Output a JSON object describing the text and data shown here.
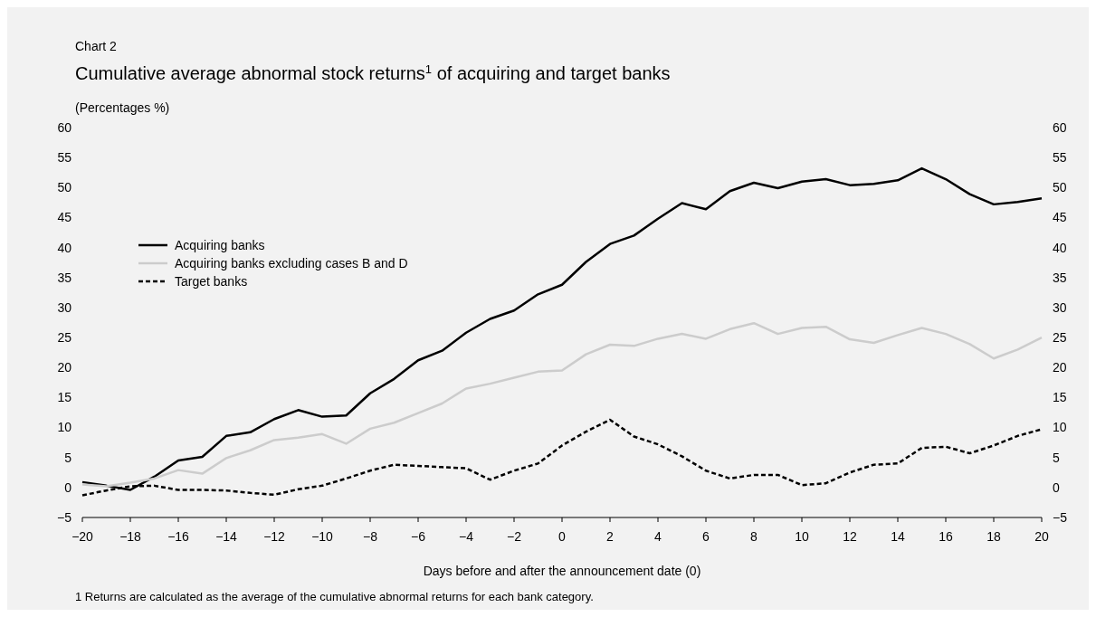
{
  "chart_data": {
    "type": "line",
    "title": "Cumulative average abnormal stock returns$^{1}$ of acquiring and target banks",
    "ylabel": "(Percentages %)",
    "xlabel": "Days before and after the announcement date (0)",
    "annotations": [
      "Chart  2",
      "1 Returns are calculated as the average of the cumulative abnormal returns for each bank category."
    ],
    "x": [
      -20,
      -19,
      -18,
      -17,
      -16,
      -15,
      -14,
      -13,
      -12,
      -11,
      -10,
      -9,
      -8,
      -7,
      -6,
      -5,
      -4,
      -3,
      -2,
      -1,
      0,
      1,
      2,
      3,
      4,
      5,
      6,
      7,
      8,
      9,
      10,
      11,
      12,
      13,
      14,
      15,
      16,
      17,
      18,
      19,
      20
    ],
    "xlim": [
      -20,
      20
    ],
    "xticks": [
      {
        "value": -20,
        "label": "−20"
      },
      {
        "value": -18,
        "label": "−18"
      },
      {
        "value": -16,
        "label": "−16"
      },
      {
        "value": -14,
        "label": "−14"
      },
      {
        "value": -12,
        "label": "−12"
      },
      {
        "value": -10,
        "label": "−10"
      },
      {
        "value": -8,
        "label": "−8"
      },
      {
        "value": -6,
        "label": "−6"
      },
      {
        "value": -4,
        "label": "−4"
      },
      {
        "value": -2,
        "label": "−2"
      },
      0,
      2,
      4,
      6,
      8,
      10,
      12,
      14,
      16,
      18,
      20
    ],
    "ylim": [
      -5,
      60
    ],
    "yticks": [
      {
        "value": -5,
        "label": "−5"
      },
      0,
      5,
      10,
      15,
      20,
      25,
      30,
      35,
      40,
      45,
      50,
      55,
      60
    ],
    "y2lim": [
      -5,
      60
    ],
    "y2ticks": [
      {
        "value": -5,
        "label": "−5"
      },
      0,
      5,
      10,
      15,
      20,
      25,
      30,
      35,
      40,
      45,
      50,
      55,
      60
    ],
    "legend": "left",
    "grid": false,
    "series": [
      {
        "name": "Acquiring banks",
        "color": "#000000",
        "line_style": "solid",
        "values": [
          0.9,
          0.3,
          -0.4,
          1.8,
          4.5,
          5.1,
          8.6,
          9.2,
          11.4,
          12.9,
          11.8,
          12.0,
          15.7,
          18.1,
          21.2,
          22.8,
          25.8,
          28.1,
          29.5,
          32.2,
          33.8,
          37.6,
          40.6,
          42.0,
          44.8,
          47.4,
          46.4,
          49.4,
          50.8,
          49.9,
          51.0,
          51.4,
          50.4,
          50.6,
          51.2,
          53.2,
          51.4,
          48.9,
          47.2,
          47.6,
          48.2
        ]
      },
      {
        "name": "Acquiring banks excluding cases B and D",
        "color": "#cccccc",
        "line_style": "solid",
        "values": [
          0.5,
          0.2,
          0.8,
          1.5,
          2.9,
          2.3,
          4.9,
          6.2,
          7.9,
          8.3,
          8.9,
          7.3,
          9.8,
          10.8,
          12.4,
          14.0,
          16.5,
          17.3,
          18.3,
          19.3,
          19.5,
          22.2,
          23.8,
          23.6,
          24.8,
          25.6,
          24.8,
          26.4,
          27.4,
          25.6,
          26.6,
          26.8,
          24.7,
          24.1,
          25.4,
          26.6,
          25.6,
          23.9,
          21.5,
          23.0,
          25.0
        ]
      },
      {
        "name": "Target banks",
        "color": "#000000",
        "line_style": "dashed",
        "values": [
          -1.3,
          -0.5,
          0.2,
          0.3,
          -0.4,
          -0.4,
          -0.5,
          -0.9,
          -1.2,
          -0.3,
          0.3,
          1.5,
          2.8,
          3.8,
          3.6,
          3.4,
          3.2,
          1.3,
          2.8,
          4.0,
          7.0,
          9.3,
          11.3,
          8.5,
          7.2,
          5.2,
          2.8,
          1.5,
          2.1,
          2.1,
          0.4,
          0.7,
          2.5,
          3.8,
          4.0,
          6.6,
          6.8,
          5.7,
          7.0,
          8.6,
          9.7
        ]
      }
    ]
  }
}
